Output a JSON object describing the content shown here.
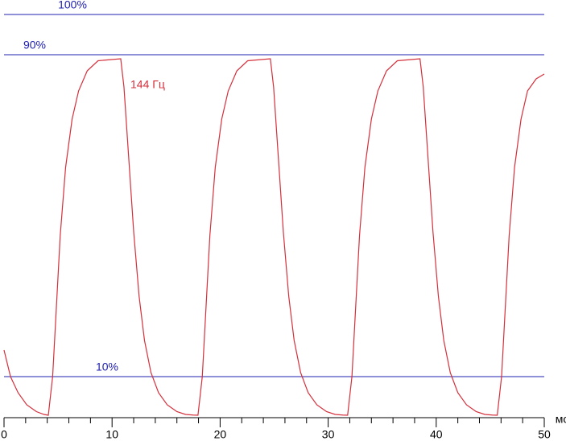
{
  "chart_data": {
    "type": "line",
    "series": [
      {
        "name": "144 Гц",
        "color": "#d4303c",
        "x": [
          0,
          0.6,
          1.3,
          2.1,
          3.0,
          3.7,
          4.1,
          4.5,
          4.9,
          5.2,
          5.7,
          6.3,
          6.9,
          7.7,
          8.7,
          10.8,
          11.1,
          11.5,
          12,
          12.5,
          13,
          13.6,
          14.3,
          15.1,
          16,
          16.8,
          17.5,
          17.95,
          18.35,
          18.75,
          19.05,
          19.55,
          20.15,
          20.75,
          21.55,
          22.55,
          24.65,
          24.95,
          25.35,
          25.85,
          26.35,
          26.85,
          27.45,
          28.15,
          28.95,
          29.85,
          30.65,
          31.35,
          31.8,
          32.2,
          32.6,
          32.9,
          33.4,
          34,
          34.6,
          35.4,
          36.4,
          38.5,
          38.8,
          39.2,
          39.7,
          40.2,
          40.7,
          41.3,
          42,
          42.8,
          43.7,
          44.5,
          45.2,
          45.65,
          46.05,
          46.45,
          46.75,
          47.25,
          47.85,
          48.45,
          49.25,
          50
        ],
        "values": [
          16.6,
          10,
          6,
          3,
          1.3,
          0.6,
          0.4,
          10,
          30,
          45,
          62,
          74,
          81,
          86,
          88.5,
          89,
          82,
          66,
          46,
          30,
          19,
          11,
          6,
          3,
          1.3,
          0.6,
          0.45,
          0.4,
          10,
          30,
          45,
          62,
          74,
          81,
          86,
          88.5,
          89,
          82,
          66,
          46,
          30,
          19,
          11,
          6,
          3,
          1.3,
          0.6,
          0.45,
          0.4,
          10,
          30,
          45,
          62,
          74,
          81,
          86,
          88.5,
          89,
          82,
          66,
          46,
          30,
          19,
          11,
          6,
          3,
          1.3,
          0.6,
          0.45,
          0.4,
          10,
          30,
          45,
          62,
          74,
          81,
          84,
          85.2
        ]
      }
    ],
    "reference_lines": [
      {
        "value": 100,
        "label": "100%"
      },
      {
        "value": 90,
        "label": "90%"
      },
      {
        "value": 10,
        "label": "10%"
      }
    ],
    "reference_color": "#2020b0",
    "xlabel": "мс",
    "xlim": [
      0,
      50
    ],
    "ylim": [
      0,
      103.6
    ],
    "xticks": [
      0,
      10,
      20,
      30,
      40,
      50
    ],
    "xminorticks": [
      2,
      4,
      6,
      8,
      12,
      14,
      16,
      18,
      22,
      24,
      26,
      28,
      32,
      34,
      36,
      38,
      42,
      44,
      46,
      48
    ]
  }
}
